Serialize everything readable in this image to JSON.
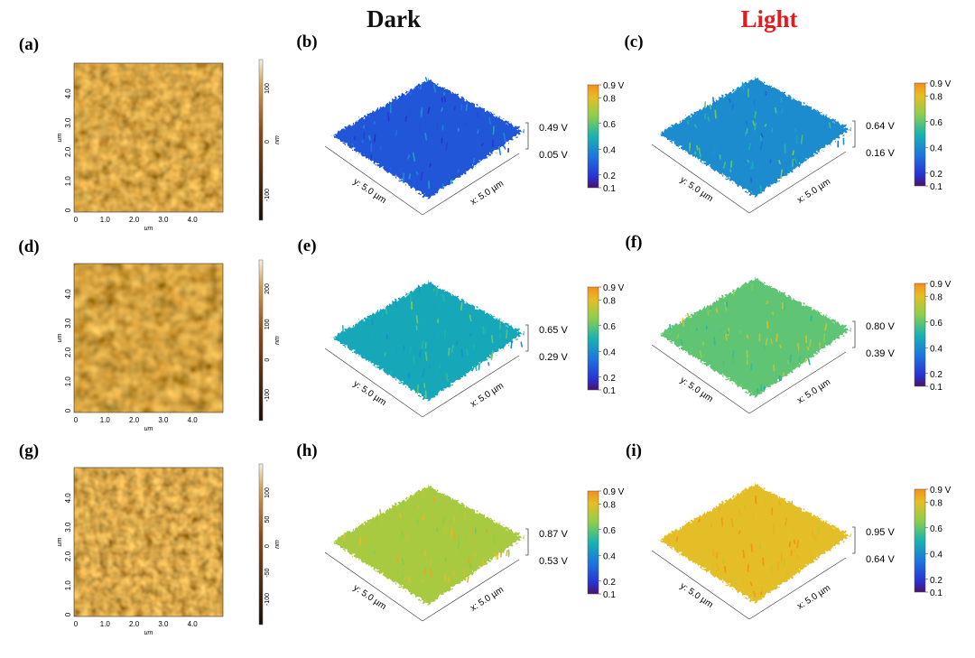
{
  "column_headers": {
    "dark": "Dark",
    "light": "Light"
  },
  "header_colors": {
    "dark": "#111111",
    "light": "#e41a1c"
  },
  "afm_panels": [
    {
      "label": "(a)",
      "x_ticks": [
        "0",
        "1.0",
        "2.0",
        "3.0",
        "4.0"
      ],
      "y_ticks": [
        "0",
        "1.0",
        "2.0",
        "3.0",
        "4.0"
      ],
      "axis_unit": "um",
      "scale_ticks": [
        "100",
        "0",
        "-100"
      ],
      "scale_unit": "nm"
    },
    {
      "label": "(d)",
      "x_ticks": [
        "0",
        "1.0",
        "2.0",
        "3.0",
        "4.0"
      ],
      "y_ticks": [
        "0",
        "1.0",
        "2.0",
        "3.0",
        "4.0"
      ],
      "axis_unit": "um",
      "scale_ticks": [
        "200",
        "100",
        "0",
        "-100"
      ],
      "scale_unit": "nm"
    },
    {
      "label": "(g)",
      "x_ticks": [
        "0",
        "1.0",
        "2.0",
        "3.0",
        "4.0"
      ],
      "y_ticks": [
        "0",
        "1.0",
        "2.0",
        "3.0",
        "4.0"
      ],
      "axis_unit": "um",
      "scale_ticks": [
        "100",
        "50",
        "0",
        "-50",
        "-100"
      ],
      "scale_unit": "nm"
    }
  ],
  "kpfm_panels": [
    {
      "label": "(b)",
      "condition": "Dark",
      "max": "0.49 V",
      "min": "0.05 V",
      "max_v": 0.49,
      "min_v": 0.05
    },
    {
      "label": "(c)",
      "condition": "Light",
      "max": "0.64 V",
      "min": "0.16 V",
      "max_v": 0.64,
      "min_v": 0.16
    },
    {
      "label": "(e)",
      "condition": "Dark",
      "max": "0.65 V",
      "min": "0.29 V",
      "max_v": 0.65,
      "min_v": 0.29
    },
    {
      "label": "(f)",
      "condition": "Light",
      "max": "0.80 V",
      "min": "0.39 V",
      "max_v": 0.8,
      "min_v": 0.39
    },
    {
      "label": "(h)",
      "condition": "Dark",
      "max": "0.87 V",
      "min": "0.53 V",
      "max_v": 0.87,
      "min_v": 0.53
    },
    {
      "label": "(i)",
      "condition": "Light",
      "max": "0.95 V",
      "min": "0.64 V",
      "max_v": 0.95,
      "min_v": 0.64
    }
  ],
  "axis_labels": {
    "x": "x: 5.0 µm",
    "y": "y: 5.0 µm"
  },
  "colorbar": {
    "ticks": [
      "0.9 V",
      "0.8",
      "0.6",
      "0.4",
      "0.2",
      "0.1"
    ],
    "tick_values": [
      0.9,
      0.8,
      0.6,
      0.4,
      0.2,
      0.1
    ],
    "range": [
      0.1,
      0.9
    ]
  }
}
